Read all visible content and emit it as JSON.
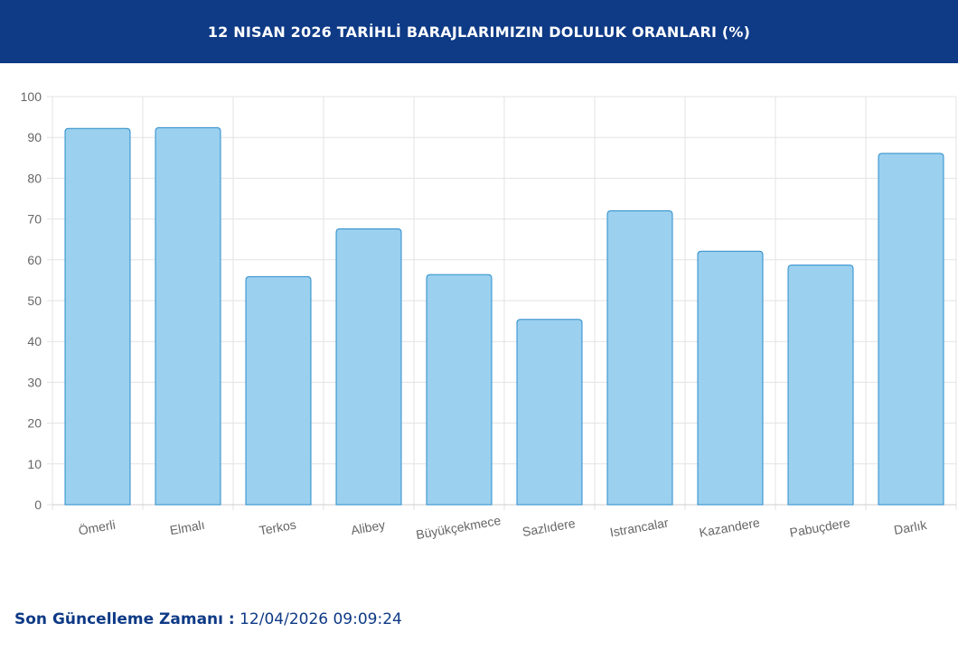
{
  "header": {
    "title": "12 NISAN 2026 TARİHLİ BARAJLARIMIZIN DOLULUK ORANLARI (%)"
  },
  "colors": {
    "header_bg": "#0e3a86",
    "bar_fill": "#9bd0ee",
    "bar_stroke": "#2b8ccc",
    "grid": "#e3e3e3",
    "tick_text": "#666666"
  },
  "chart_data": {
    "type": "bar",
    "categories": [
      "Ömerli",
      "Elmalı",
      "Terkos",
      "Alibey",
      "Büyükçekmece",
      "Sazlıdere",
      "Istrancalar",
      "Kazandere",
      "Pabuçdere",
      "Darlık"
    ],
    "values": [
      92.2,
      92.4,
      55.9,
      67.6,
      56.4,
      45.4,
      72.0,
      62.1,
      58.7,
      86.1
    ],
    "ylim": [
      0,
      100
    ],
    "yticks": [
      0,
      10,
      20,
      30,
      40,
      50,
      60,
      70,
      80,
      90,
      100
    ],
    "grid": true,
    "legend": "none"
  },
  "footer": {
    "label": "Son Güncelleme Zamanı :",
    "value": "12/04/2026 09:09:24"
  }
}
